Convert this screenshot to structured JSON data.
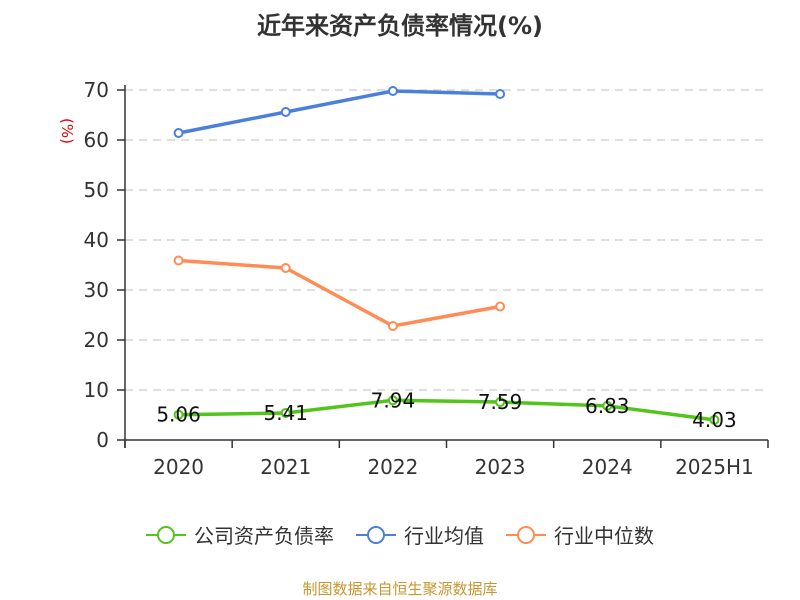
{
  "title": "近年来资产负债率情况(%)",
  "y_unit_label": "(%)",
  "source": "制图数据来自恒生聚源数据库",
  "colors": {
    "company": "#52c41a",
    "industry_avg": "#4a7fdc",
    "industry_median": "#ff8c55",
    "unit_label": "#e60000",
    "source_text": "#c8962e",
    "grid": "#cccccc",
    "axis": "#333333"
  },
  "legend": [
    {
      "label": "公司资产负债率",
      "color": "#52c41a"
    },
    {
      "label": "行业均值",
      "color": "#4a7fdc"
    },
    {
      "label": "行业中位数",
      "color": "#ff8c55"
    }
  ],
  "chart_data": {
    "type": "line",
    "title": "近年来资产负债率情况(%)",
    "xlabel": "",
    "ylabel": "(%)",
    "ylim": [
      0,
      70
    ],
    "yticks": [
      0,
      10,
      20,
      30,
      40,
      50,
      60,
      70
    ],
    "grid": true,
    "legend_position": "bottom",
    "categories": [
      "2020",
      "2021",
      "2022",
      "2023",
      "2024",
      "2025H1"
    ],
    "series": [
      {
        "name": "公司资产负债率",
        "values": [
          5.06,
          5.41,
          7.94,
          7.59,
          6.83,
          4.03
        ],
        "labels": [
          "5.06",
          "5.41",
          "7.94",
          "7.59",
          "6.83",
          "4.03"
        ],
        "color": "#52c41a"
      },
      {
        "name": "行业均值",
        "values": [
          61.4,
          65.6,
          69.8,
          69.2,
          null,
          null
        ],
        "color": "#4a7fdc"
      },
      {
        "name": "行业中位数",
        "values": [
          35.9,
          34.4,
          22.8,
          26.7,
          null,
          null
        ],
        "color": "#ff8c55"
      }
    ]
  }
}
